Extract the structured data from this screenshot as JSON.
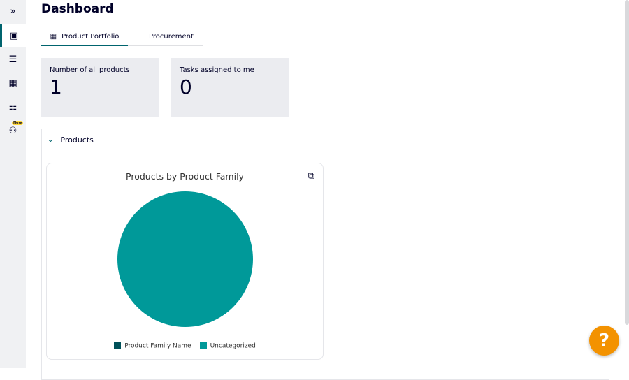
{
  "sidebar": {
    "items": [
      {
        "icon": "expand-icon",
        "glyph": "»"
      },
      {
        "icon": "dashboard-icon",
        "glyph": "▣",
        "active": true
      },
      {
        "icon": "task-list-icon",
        "glyph": "☰"
      },
      {
        "icon": "product-portfolio-icon",
        "glyph": "▦"
      },
      {
        "icon": "hierarchy-icon",
        "glyph": "⚏"
      },
      {
        "icon": "team-icon",
        "glyph": "⚇",
        "badge": "New"
      }
    ]
  },
  "header": {
    "title": "Dashboard"
  },
  "tabs": [
    {
      "label": "Product Portfolio",
      "icon": "portfolio-icon",
      "glyph": "▦",
      "active": true
    },
    {
      "label": "Procurement",
      "icon": "hierarchy-icon",
      "glyph": "⚏"
    }
  ],
  "kpis": [
    {
      "label": "Number of all products",
      "value": "1"
    },
    {
      "label": "Tasks assigned to me",
      "value": "0"
    }
  ],
  "products": {
    "title": "Products"
  },
  "chart_data": {
    "type": "pie",
    "title": "Products by Product Family",
    "legend_position": "bottom",
    "legend": [
      {
        "name": "Product Family Name",
        "color": "#005159"
      },
      {
        "name": "Uncategorized",
        "color": "#009999"
      }
    ],
    "slices": [
      {
        "name": "Uncategorized",
        "value": 1,
        "color": "#009999"
      }
    ]
  },
  "help": {
    "label": "?"
  },
  "colors": {
    "accent": "#00646e",
    "help": "#f39200"
  }
}
